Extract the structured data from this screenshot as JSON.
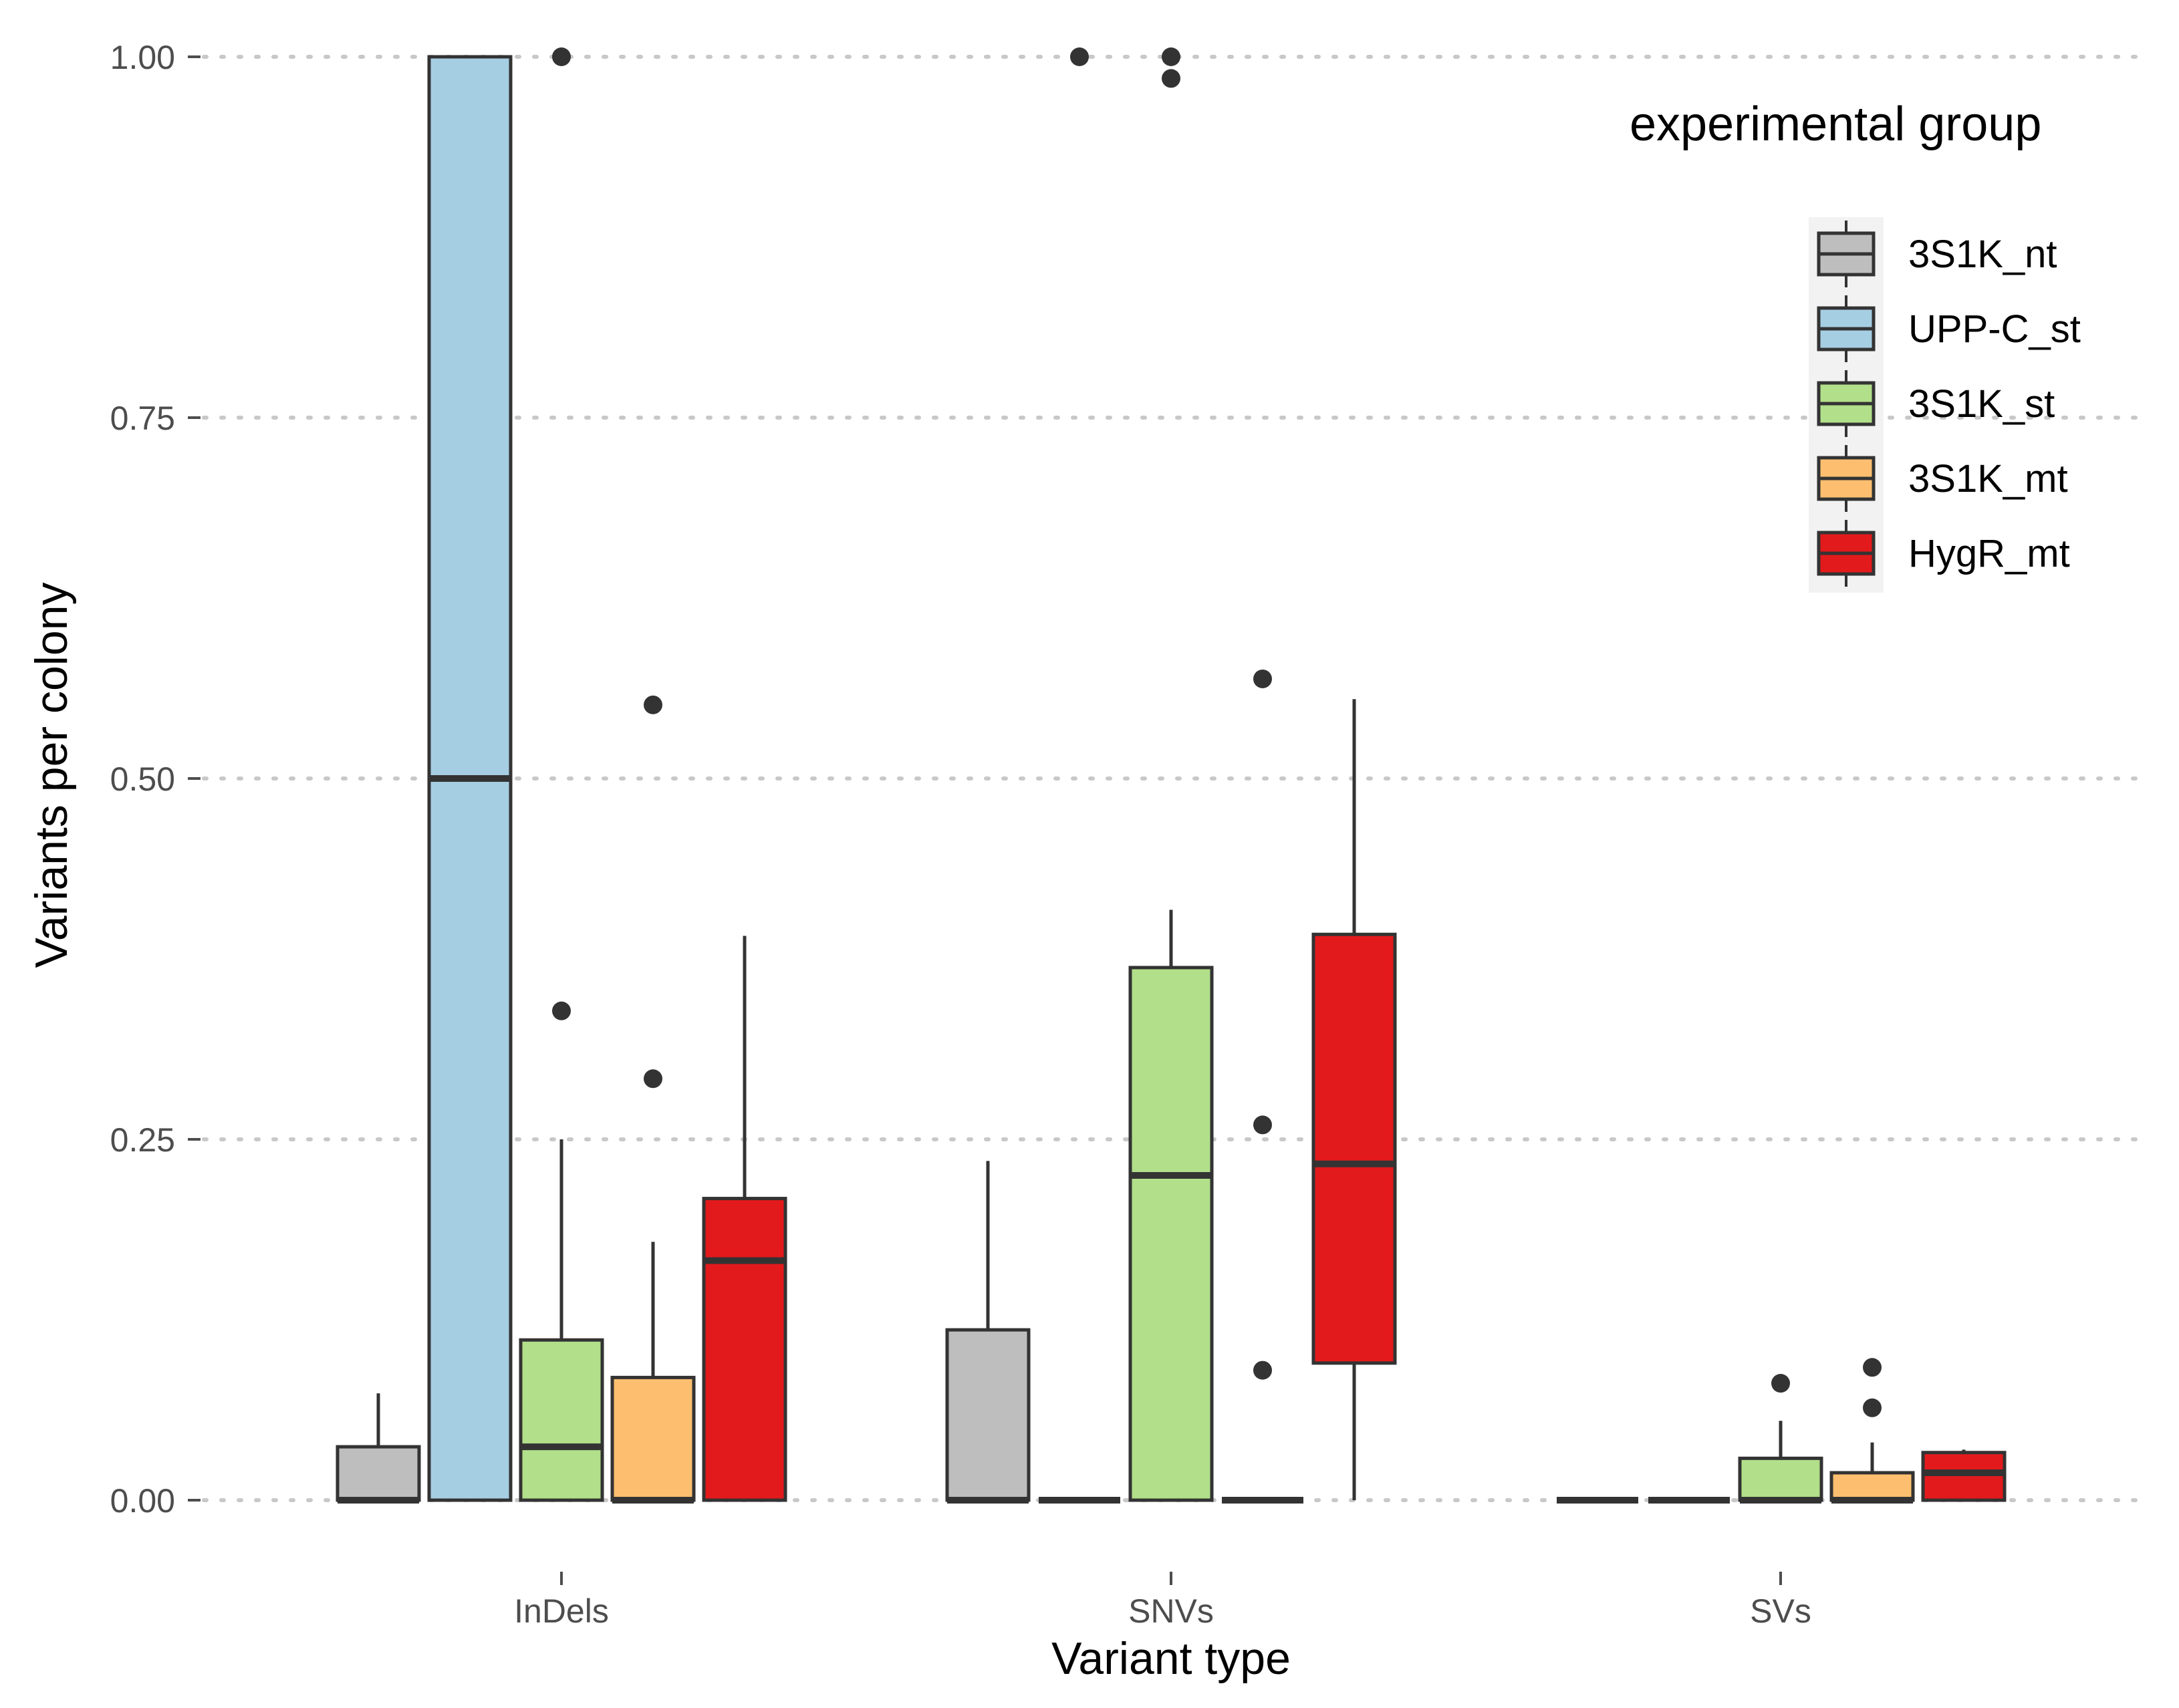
{
  "chart_data": {
    "type": "boxplot",
    "xlabel": "Variant type",
    "ylabel": "Variants per colony",
    "ylim": [
      0,
      1
    ],
    "yticks": [
      {
        "value": 0.0,
        "label": "0.00"
      },
      {
        "value": 0.25,
        "label": "0.25"
      },
      {
        "value": 0.5,
        "label": "0.50"
      },
      {
        "value": 0.75,
        "label": "0.75"
      },
      {
        "value": 1.0,
        "label": "1.00"
      }
    ],
    "grid": "horizontal dotted major",
    "categories": [
      "InDels",
      "SNVs",
      "SVs"
    ],
    "legend": {
      "title": "experimental group",
      "position": "top-right"
    },
    "series": [
      {
        "name": "3S1K_nt",
        "color": "#bebebe",
        "boxes": [
          {
            "category": "InDels",
            "q1": 0,
            "median": 0,
            "q3": 0.037,
            "whisker_low": 0,
            "whisker_high": 0.074,
            "outliers": []
          },
          {
            "category": "SNVs",
            "q1": 0,
            "median": 0,
            "q3": 0.118,
            "whisker_low": 0,
            "whisker_high": 0.235,
            "outliers": []
          },
          {
            "category": "SVs",
            "q1": 0,
            "median": 0,
            "q3": 0,
            "whisker_low": 0,
            "whisker_high": 0,
            "outliers": []
          }
        ]
      },
      {
        "name": "UPP-C_st",
        "color": "#a6cee3",
        "boxes": [
          {
            "category": "InDels",
            "q1": 0,
            "median": 0.5,
            "q3": 1.0,
            "whisker_low": 0,
            "whisker_high": 1.0,
            "outliers": []
          },
          {
            "category": "SNVs",
            "q1": 0,
            "median": 0,
            "q3": 0,
            "whisker_low": 0,
            "whisker_high": 0,
            "outliers": [
              1.0
            ]
          },
          {
            "category": "SVs",
            "q1": 0,
            "median": 0,
            "q3": 0,
            "whisker_low": 0,
            "whisker_high": 0,
            "outliers": []
          }
        ]
      },
      {
        "name": "3S1K_st",
        "color": "#b2df8a",
        "boxes": [
          {
            "category": "InDels",
            "q1": 0,
            "median": 0.037,
            "q3": 0.111,
            "whisker_low": 0,
            "whisker_high": 0.25,
            "outliers": [
              0.339,
              1.0
            ]
          },
          {
            "category": "SNVs",
            "q1": 0,
            "median": 0.225,
            "q3": 0.369,
            "whisker_low": 0,
            "whisker_high": 0.409,
            "outliers": [
              0.985,
              1.0
            ]
          },
          {
            "category": "SVs",
            "q1": 0,
            "median": 0,
            "q3": 0.029,
            "whisker_low": 0,
            "whisker_high": 0.055,
            "outliers": [
              0.081
            ]
          }
        ]
      },
      {
        "name": "3S1K_mt",
        "color": "#fdbf6f",
        "boxes": [
          {
            "category": "InDels",
            "q1": 0,
            "median": 0,
            "q3": 0.085,
            "whisker_low": 0,
            "whisker_high": 0.179,
            "outliers": [
              0.292,
              0.551
            ]
          },
          {
            "category": "SNVs",
            "q1": 0,
            "median": 0,
            "q3": 0,
            "whisker_low": 0,
            "whisker_high": 0,
            "outliers": [
              0.09,
              0.26,
              0.569
            ]
          },
          {
            "category": "SVs",
            "q1": 0,
            "median": 0,
            "q3": 0.019,
            "whisker_low": 0,
            "whisker_high": 0.04,
            "outliers": [
              0.064,
              0.092
            ]
          }
        ]
      },
      {
        "name": "HygR_mt",
        "color": "#e31a1c",
        "boxes": [
          {
            "category": "InDels",
            "q1": 0,
            "median": 0.166,
            "q3": 0.209,
            "whisker_low": 0,
            "whisker_high": 0.391,
            "outliers": []
          },
          {
            "category": "SNVs",
            "q1": 0.095,
            "median": 0.233,
            "q3": 0.392,
            "whisker_low": 0,
            "whisker_high": 0.555,
            "outliers": []
          },
          {
            "category": "SVs",
            "q1": 0,
            "median": 0.019,
            "q3": 0.033,
            "whisker_low": 0,
            "whisker_high": 0.035,
            "outliers": []
          }
        ]
      }
    ]
  }
}
